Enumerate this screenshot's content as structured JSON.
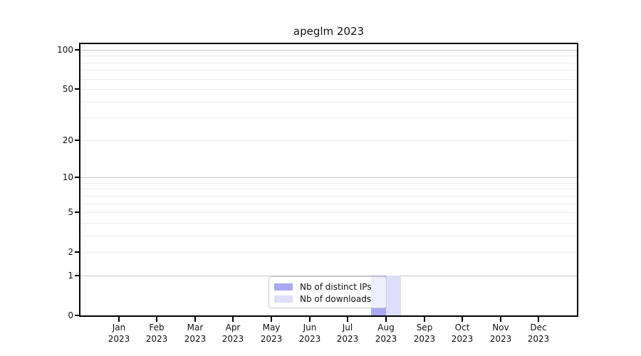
{
  "chart_data": {
    "type": "bar",
    "title": "apeglm 2023",
    "x_labels": [
      {
        "line1": "Jan",
        "line2": "2023"
      },
      {
        "line1": "Feb",
        "line2": "2023"
      },
      {
        "line1": "Mar",
        "line2": "2023"
      },
      {
        "line1": "Apr",
        "line2": "2023"
      },
      {
        "line1": "May",
        "line2": "2023"
      },
      {
        "line1": "Jun",
        "line2": "2023"
      },
      {
        "line1": "Jul",
        "line2": "2023"
      },
      {
        "line1": "Aug",
        "line2": "2023"
      },
      {
        "line1": "Sep",
        "line2": "2023"
      },
      {
        "line1": "Oct",
        "line2": "2023"
      },
      {
        "line1": "Nov",
        "line2": "2023"
      },
      {
        "line1": "Dec",
        "line2": "2023"
      }
    ],
    "series": [
      {
        "name": "Nb of distinct IPs",
        "color": "#a9a9f0",
        "values": [
          0,
          0,
          0,
          0,
          0,
          0,
          0,
          1,
          0,
          0,
          0,
          0
        ]
      },
      {
        "name": "Nb of downloads",
        "color": "#dedef9",
        "values": [
          0,
          0,
          0,
          0,
          0,
          0,
          0,
          1,
          0,
          0,
          0,
          0
        ]
      }
    ],
    "y_axis": {
      "scale": "log1p",
      "ticks": [
        0,
        1,
        2,
        5,
        10,
        20,
        50,
        100
      ],
      "ylim": [
        0,
        111
      ]
    },
    "grid": {
      "major_values": [
        1,
        10,
        100
      ],
      "minor_values": [
        2,
        3,
        4,
        5,
        6,
        7,
        8,
        9,
        20,
        30,
        40,
        50,
        60,
        70,
        80,
        90
      ],
      "major_color": "#c8c8c8",
      "minor_color": "#ececec"
    },
    "legend": {
      "position": "bottom-center"
    },
    "colors": {
      "axis": "#000000",
      "background": "#ffffff"
    }
  }
}
